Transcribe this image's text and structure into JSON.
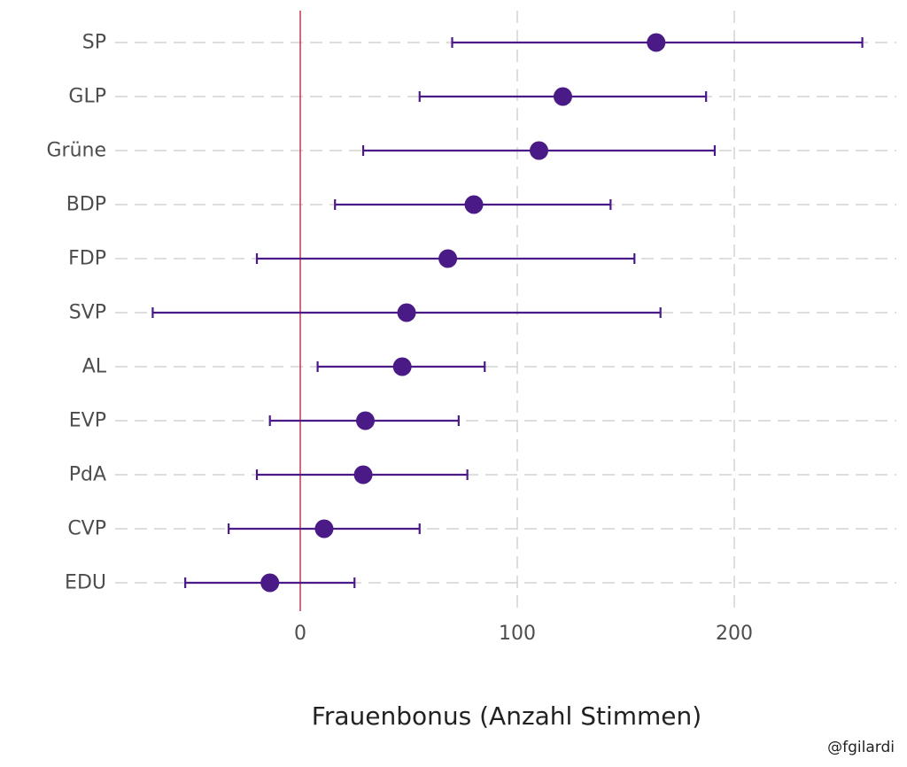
{
  "chart_data": {
    "type": "errorbar",
    "orientation": "horizontal",
    "categories": [
      "SP",
      "GLP",
      "Grüne",
      "BDP",
      "FDP",
      "SVP",
      "AL",
      "EVP",
      "PdA",
      "CVP",
      "EDU"
    ],
    "series": [
      {
        "estimate": [
          164,
          121,
          110,
          80,
          68,
          49,
          47,
          30,
          29,
          11,
          -14
        ],
        "lower": [
          70,
          55,
          29,
          16,
          -20,
          -68,
          8,
          -14,
          -20,
          -33,
          -53
        ],
        "upper": [
          259,
          187,
          191,
          143,
          154,
          166,
          85,
          73,
          77,
          55,
          25
        ]
      }
    ],
    "xlim": [
      -85,
      277
    ],
    "xticks": [
      0,
      100,
      200
    ],
    "xtick_labels": [
      "0",
      "100",
      "200"
    ],
    "xlabel": "Frauenbonus (Anzahl Stimmen)",
    "reference_line": 0,
    "grid": "dashed",
    "colors": {
      "point": "#4a1a87",
      "errorbar": "#4a1a87",
      "reference_line": "#c0283e",
      "grid": "#d3d3d3"
    }
  },
  "caption": "@fgilardi"
}
